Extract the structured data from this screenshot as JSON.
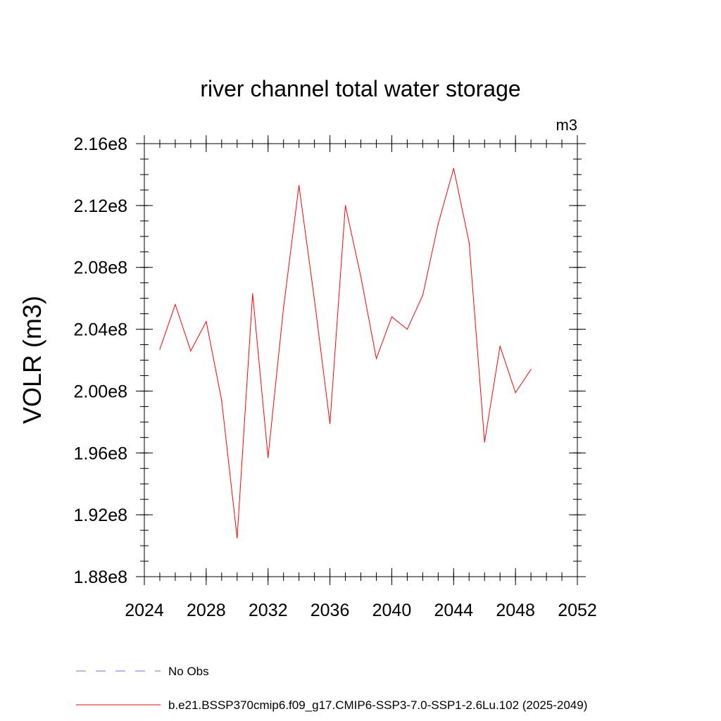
{
  "chart_data": {
    "type": "line",
    "title": "river channel total water storage",
    "units_label": "m3",
    "ylabel": "VOLR  (m3)",
    "xlabel": "",
    "xlim": [
      2024,
      2052
    ],
    "ylim": [
      188000000.0,
      216000000.0
    ],
    "x_ticks": [
      2024,
      2028,
      2032,
      2036,
      2040,
      2044,
      2048,
      2052
    ],
    "x_tick_labels": [
      "2024",
      "2028",
      "2032",
      "2036",
      "2040",
      "2044",
      "2048",
      "2052"
    ],
    "y_ticks": [
      188000000.0,
      192000000.0,
      196000000.0,
      200000000.0,
      204000000.0,
      208000000.0,
      212000000.0,
      216000000.0
    ],
    "y_tick_labels": [
      "1.88e8",
      "1.92e8",
      "1.96e8",
      "2.00e8",
      "2.04e8",
      "2.08e8",
      "2.12e8",
      "2.16e8"
    ],
    "grid": false,
    "legend_position": "bottom",
    "series": [
      {
        "name": "b.e21.BSSP370cmip6.f09_g17.CMIP6-SSP3-7.0-SSP1-2.6Lu.102 (2025-2049)",
        "color": "#ff0000",
        "style": "solid",
        "x": [
          2025,
          2026,
          2027,
          2028,
          2029,
          2030,
          2031,
          2032,
          2033,
          2034,
          2035,
          2036,
          2037,
          2038,
          2039,
          2040,
          2041,
          2042,
          2043,
          2044,
          2045,
          2046,
          2047,
          2048,
          2049
        ],
        "y": [
          202700000.0,
          205600000.0,
          202600000.0,
          204500000.0,
          199400000.0,
          190500000.0,
          206300000.0,
          195700000.0,
          205400000.0,
          213300000.0,
          205900000.0,
          197900000.0,
          212000000.0,
          207400000.0,
          202100000.0,
          204800000.0,
          204000000.0,
          206200000.0,
          210800000.0,
          214400000.0,
          209600000.0,
          196700000.0,
          202900000.0,
          199900000.0,
          201400000.0
        ]
      }
    ],
    "legend": [
      {
        "label": "No Obs",
        "color": "#7b68ee",
        "style": "dashed"
      },
      {
        "label": "b.e21.BSSP370cmip6.f09_g17.CMIP6-SSP3-7.0-SSP1-2.6Lu.102 (2025-2049)",
        "color": "#ff0000",
        "style": "solid"
      }
    ]
  }
}
